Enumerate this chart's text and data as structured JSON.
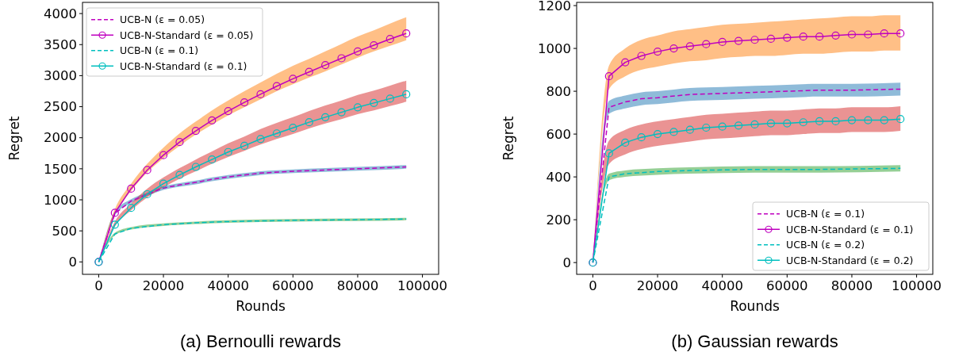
{
  "chart_data": [
    {
      "type": "line",
      "title": "(a) Bernoulli rewards",
      "xlabel": "Rounds",
      "ylabel": "Regret",
      "xlim": [
        -5000,
        105000
      ],
      "ylim": [
        -200,
        4180
      ],
      "xticks": [
        0,
        20000,
        40000,
        60000,
        80000,
        100000
      ],
      "yticks": [
        0,
        500,
        1000,
        1500,
        2000,
        2500,
        3000,
        3500,
        4000
      ],
      "legend": "top left",
      "grid": false,
      "series": [
        {
          "name": "UCB-N (ε = 0.05)",
          "color": "#bf00bf",
          "line_style": "dashed",
          "marker": "none",
          "x": [
            0,
            5000,
            10000,
            15000,
            20000,
            25000,
            30000,
            35000,
            40000,
            45000,
            50000,
            60000,
            70000,
            80000,
            95000
          ],
          "values": [
            0,
            780,
            980,
            1090,
            1190,
            1240,
            1280,
            1330,
            1370,
            1400,
            1430,
            1460,
            1480,
            1500,
            1530
          ],
          "lower": [
            0,
            750,
            950,
            1060,
            1160,
            1210,
            1250,
            1300,
            1340,
            1370,
            1400,
            1430,
            1450,
            1470,
            1500
          ],
          "upper": [
            0,
            810,
            1010,
            1120,
            1220,
            1270,
            1310,
            1360,
            1400,
            1430,
            1460,
            1490,
            1510,
            1530,
            1560
          ]
        },
        {
          "name": "UCB-N-Standard (ε = 0.05)",
          "color": "#bf00bf",
          "line_style": "solid",
          "marker": "circle",
          "x": [
            0,
            5000,
            10000,
            15000,
            20000,
            25000,
            30000,
            35000,
            40000,
            45000,
            50000,
            55000,
            60000,
            65000,
            70000,
            75000,
            80000,
            85000,
            90000,
            95000
          ],
          "values": [
            0,
            790,
            1180,
            1480,
            1720,
            1930,
            2110,
            2280,
            2430,
            2570,
            2700,
            2830,
            2950,
            3060,
            3170,
            3280,
            3390,
            3490,
            3590,
            3680
          ],
          "lower": [
            0,
            770,
            1140,
            1440,
            1670,
            1870,
            2050,
            2210,
            2360,
            2490,
            2620,
            2750,
            2860,
            2970,
            3070,
            3180,
            3290,
            3390,
            3480,
            3570
          ],
          "upper": [
            0,
            850,
            1260,
            1580,
            1840,
            2070,
            2260,
            2440,
            2600,
            2750,
            2890,
            3030,
            3160,
            3270,
            3390,
            3510,
            3630,
            3730,
            3840,
            3940
          ]
        },
        {
          "name": "UCB-N (ε = 0.1)",
          "color": "#00bfbf",
          "line_style": "dashed",
          "marker": "none",
          "x": [
            0,
            5000,
            10000,
            20000,
            30000,
            40000,
            60000,
            80000,
            95000
          ],
          "values": [
            0,
            450,
            540,
            600,
            630,
            650,
            670,
            680,
            690
          ],
          "lower": [
            0,
            430,
            520,
            580,
            610,
            630,
            650,
            660,
            670
          ],
          "upper": [
            0,
            470,
            560,
            620,
            650,
            670,
            690,
            700,
            710
          ]
        },
        {
          "name": "UCB-N-Standard (ε = 0.1)",
          "color": "#00bfbf",
          "line_style": "solid",
          "marker": "circle",
          "x": [
            0,
            5000,
            10000,
            15000,
            20000,
            25000,
            30000,
            35000,
            40000,
            45000,
            50000,
            55000,
            60000,
            65000,
            70000,
            75000,
            80000,
            85000,
            90000,
            95000
          ],
          "values": [
            0,
            600,
            870,
            1090,
            1260,
            1400,
            1530,
            1650,
            1770,
            1870,
            1980,
            2070,
            2160,
            2250,
            2330,
            2410,
            2490,
            2560,
            2630,
            2700
          ],
          "lower": [
            0,
            570,
            830,
            1040,
            1200,
            1340,
            1460,
            1580,
            1690,
            1790,
            1890,
            1980,
            2060,
            2150,
            2230,
            2300,
            2380,
            2440,
            2510,
            2580
          ],
          "upper": [
            0,
            650,
            940,
            1180,
            1360,
            1510,
            1650,
            1780,
            1910,
            2020,
            2140,
            2240,
            2330,
            2430,
            2520,
            2600,
            2690,
            2760,
            2840,
            2920
          ]
        }
      ]
    },
    {
      "type": "line",
      "title": "(b) Gaussian rewards",
      "xlabel": "Rounds",
      "ylabel": "Regret",
      "xlim": [
        -5000,
        105000
      ],
      "ylim": [
        -55,
        1215
      ],
      "xticks": [
        0,
        20000,
        40000,
        60000,
        80000,
        100000
      ],
      "yticks": [
        0,
        200,
        400,
        600,
        800,
        1000,
        1200
      ],
      "legend": "bottom right",
      "grid": false,
      "series": [
        {
          "name": "UCB-N (ε = 0.1)",
          "color": "#bf00bf",
          "line_style": "dashed",
          "marker": "none",
          "x": [
            0,
            5000,
            10000,
            15000,
            20000,
            30000,
            40000,
            50000,
            60000,
            70000,
            80000,
            95000
          ],
          "values": [
            0,
            725,
            750,
            765,
            770,
            785,
            790,
            795,
            800,
            805,
            805,
            810
          ],
          "lower": [
            0,
            695,
            720,
            735,
            740,
            755,
            760,
            765,
            770,
            775,
            775,
            780
          ],
          "upper": [
            0,
            755,
            780,
            795,
            800,
            815,
            820,
            825,
            830,
            835,
            835,
            840
          ]
        },
        {
          "name": "UCB-N-Standard (ε = 0.1)",
          "color": "#bf00bf",
          "line_style": "solid",
          "marker": "circle",
          "x": [
            0,
            5000,
            10000,
            15000,
            20000,
            25000,
            30000,
            35000,
            40000,
            45000,
            50000,
            55000,
            60000,
            65000,
            70000,
            75000,
            80000,
            85000,
            90000,
            95000
          ],
          "values": [
            0,
            870,
            935,
            965,
            985,
            1000,
            1010,
            1020,
            1030,
            1035,
            1040,
            1045,
            1050,
            1055,
            1055,
            1060,
            1065,
            1065,
            1070,
            1070
          ],
          "lower": [
            0,
            810,
            870,
            900,
            915,
            930,
            940,
            945,
            955,
            960,
            965,
            965,
            970,
            975,
            975,
            980,
            985,
            985,
            990,
            990
          ],
          "upper": [
            0,
            920,
            1000,
            1040,
            1060,
            1080,
            1090,
            1100,
            1110,
            1115,
            1120,
            1125,
            1130,
            1135,
            1140,
            1145,
            1150,
            1150,
            1155,
            1155
          ]
        },
        {
          "name": "UCB-N (ε = 0.2)",
          "color": "#00bfbf",
          "line_style": "dashed",
          "marker": "none",
          "x": [
            0,
            5000,
            10000,
            20000,
            30000,
            50000,
            70000,
            95000
          ],
          "values": [
            0,
            400,
            415,
            425,
            430,
            435,
            435,
            440
          ],
          "lower": [
            0,
            385,
            400,
            410,
            415,
            420,
            420,
            425
          ],
          "upper": [
            0,
            415,
            430,
            440,
            445,
            450,
            450,
            455
          ]
        },
        {
          "name": "UCB-N-Standard (ε = 0.2)",
          "color": "#00bfbf",
          "line_style": "solid",
          "marker": "circle",
          "x": [
            0,
            5000,
            10000,
            15000,
            20000,
            25000,
            30000,
            35000,
            40000,
            45000,
            50000,
            55000,
            60000,
            65000,
            70000,
            75000,
            80000,
            85000,
            90000,
            95000
          ],
          "values": [
            0,
            510,
            560,
            585,
            600,
            610,
            620,
            630,
            635,
            640,
            645,
            650,
            650,
            655,
            660,
            660,
            665,
            665,
            665,
            670
          ],
          "lower": [
            0,
            460,
            505,
            530,
            545,
            555,
            565,
            575,
            580,
            585,
            590,
            595,
            595,
            600,
            605,
            605,
            610,
            610,
            610,
            615
          ],
          "upper": [
            0,
            570,
            620,
            645,
            660,
            670,
            680,
            690,
            695,
            700,
            705,
            710,
            710,
            715,
            720,
            720,
            725,
            725,
            725,
            730
          ]
        }
      ]
    }
  ]
}
